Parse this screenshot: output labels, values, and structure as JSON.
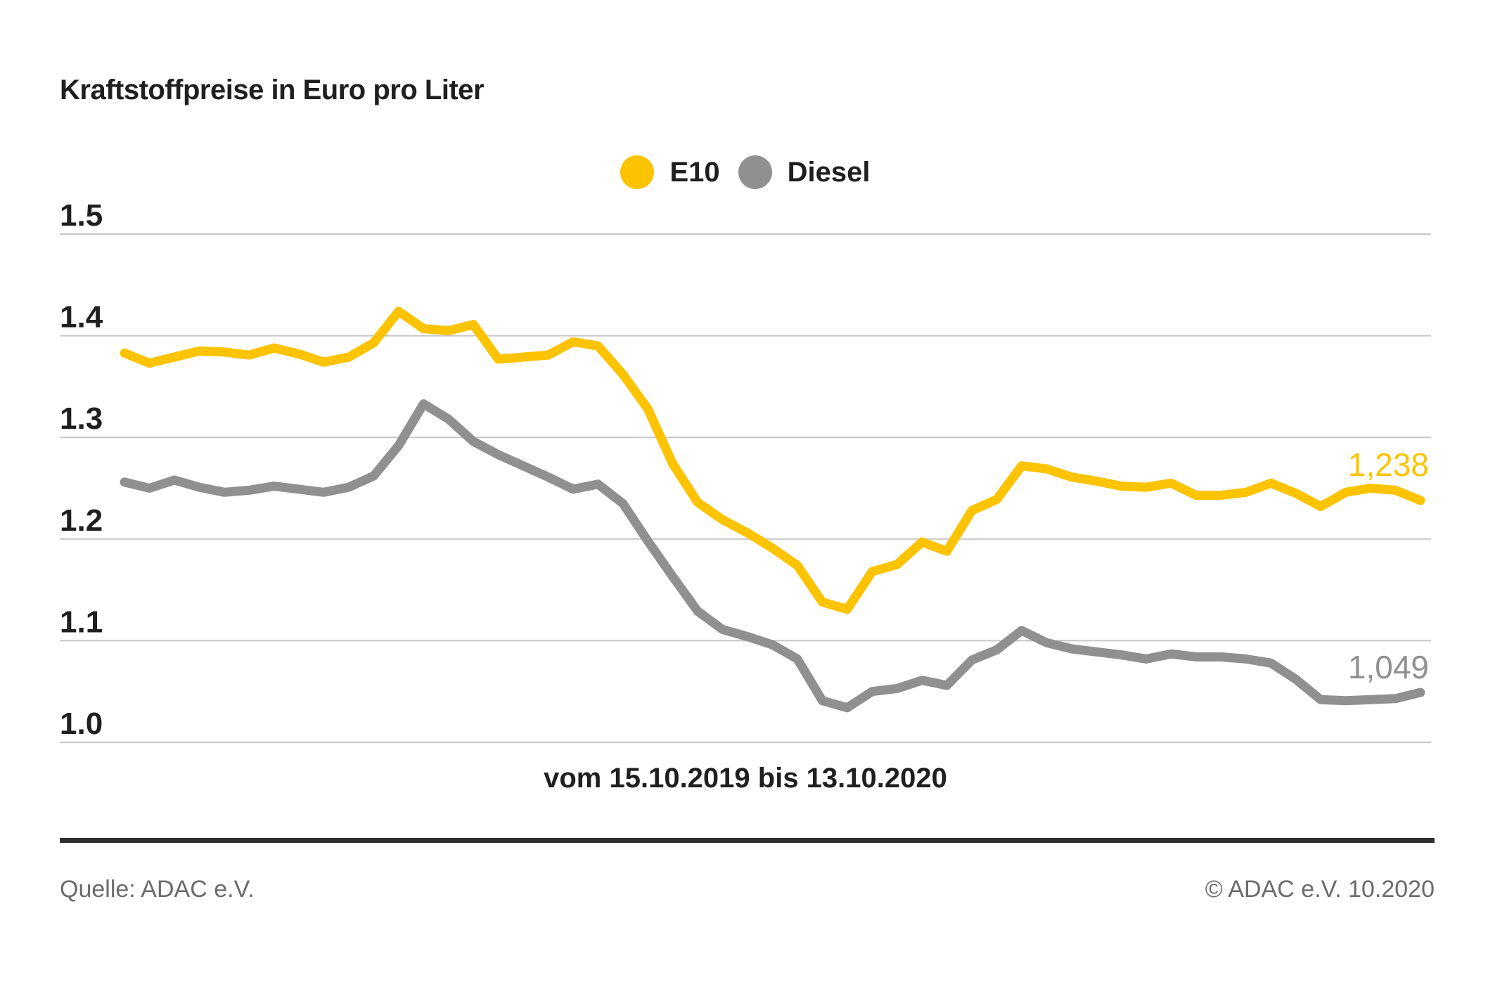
{
  "title": "Kraftstoffpreise in Euro pro Liter",
  "x_axis_label": "vom 15.10.2019 bis 13.10.2020",
  "footer": {
    "source": "Quelle: ADAC e.V.",
    "copyright": "© ADAC e.V. 10.2020"
  },
  "colors": {
    "e10": "#FCC300",
    "diesel": "#909090",
    "gridline": "#c6c6c6",
    "text_dark": "#1f1f1f",
    "text_gray": "#6b6b6b"
  },
  "chart_data": {
    "type": "line",
    "title": "Kraftstoffpreise in Euro pro Liter",
    "xlabel": "vom 15.10.2019 bis 13.10.2020",
    "ylabel": "Euro pro Liter",
    "x_unit": "week",
    "x_start": "15.10.2019",
    "x_end": "13.10.2020",
    "ylim": [
      1.0,
      1.5
    ],
    "grid": true,
    "legend_position": "top-center",
    "yticks": [
      {
        "value": 1.5,
        "label": "1.5"
      },
      {
        "value": 1.4,
        "label": "1.4"
      },
      {
        "value": 1.3,
        "label": "1.3"
      },
      {
        "value": 1.2,
        "label": "1.2"
      },
      {
        "value": 1.1,
        "label": "1.1"
      },
      {
        "value": 1.0,
        "label": "1.0"
      }
    ],
    "series": [
      {
        "name": "E10",
        "color": "#FCC300",
        "end_label": "1,238",
        "values": [
          1.383,
          1.373,
          1.379,
          1.385,
          1.384,
          1.381,
          1.388,
          1.382,
          1.374,
          1.379,
          1.393,
          1.424,
          1.407,
          1.405,
          1.411,
          1.377,
          1.379,
          1.381,
          1.394,
          1.39,
          1.362,
          1.328,
          1.274,
          1.236,
          1.219,
          1.206,
          1.191,
          1.174,
          1.138,
          1.131,
          1.168,
          1.175,
          1.197,
          1.188,
          1.228,
          1.239,
          1.272,
          1.269,
          1.261,
          1.257,
          1.252,
          1.251,
          1.255,
          1.243,
          1.243,
          1.246,
          1.255,
          1.245,
          1.232,
          1.246,
          1.25,
          1.248,
          1.238
        ]
      },
      {
        "name": "Diesel",
        "color": "#909090",
        "end_label": "1,049",
        "values": [
          1.256,
          1.25,
          1.258,
          1.251,
          1.246,
          1.248,
          1.252,
          1.249,
          1.246,
          1.251,
          1.262,
          1.292,
          1.333,
          1.318,
          1.296,
          1.283,
          1.272,
          1.261,
          1.249,
          1.254,
          1.235,
          1.198,
          1.163,
          1.129,
          1.111,
          1.104,
          1.096,
          1.082,
          1.041,
          1.034,
          1.05,
          1.053,
          1.061,
          1.056,
          1.081,
          1.091,
          1.11,
          1.098,
          1.092,
          1.089,
          1.086,
          1.082,
          1.087,
          1.084,
          1.084,
          1.082,
          1.078,
          1.062,
          1.042,
          1.041,
          1.042,
          1.043,
          1.049
        ]
      }
    ]
  }
}
